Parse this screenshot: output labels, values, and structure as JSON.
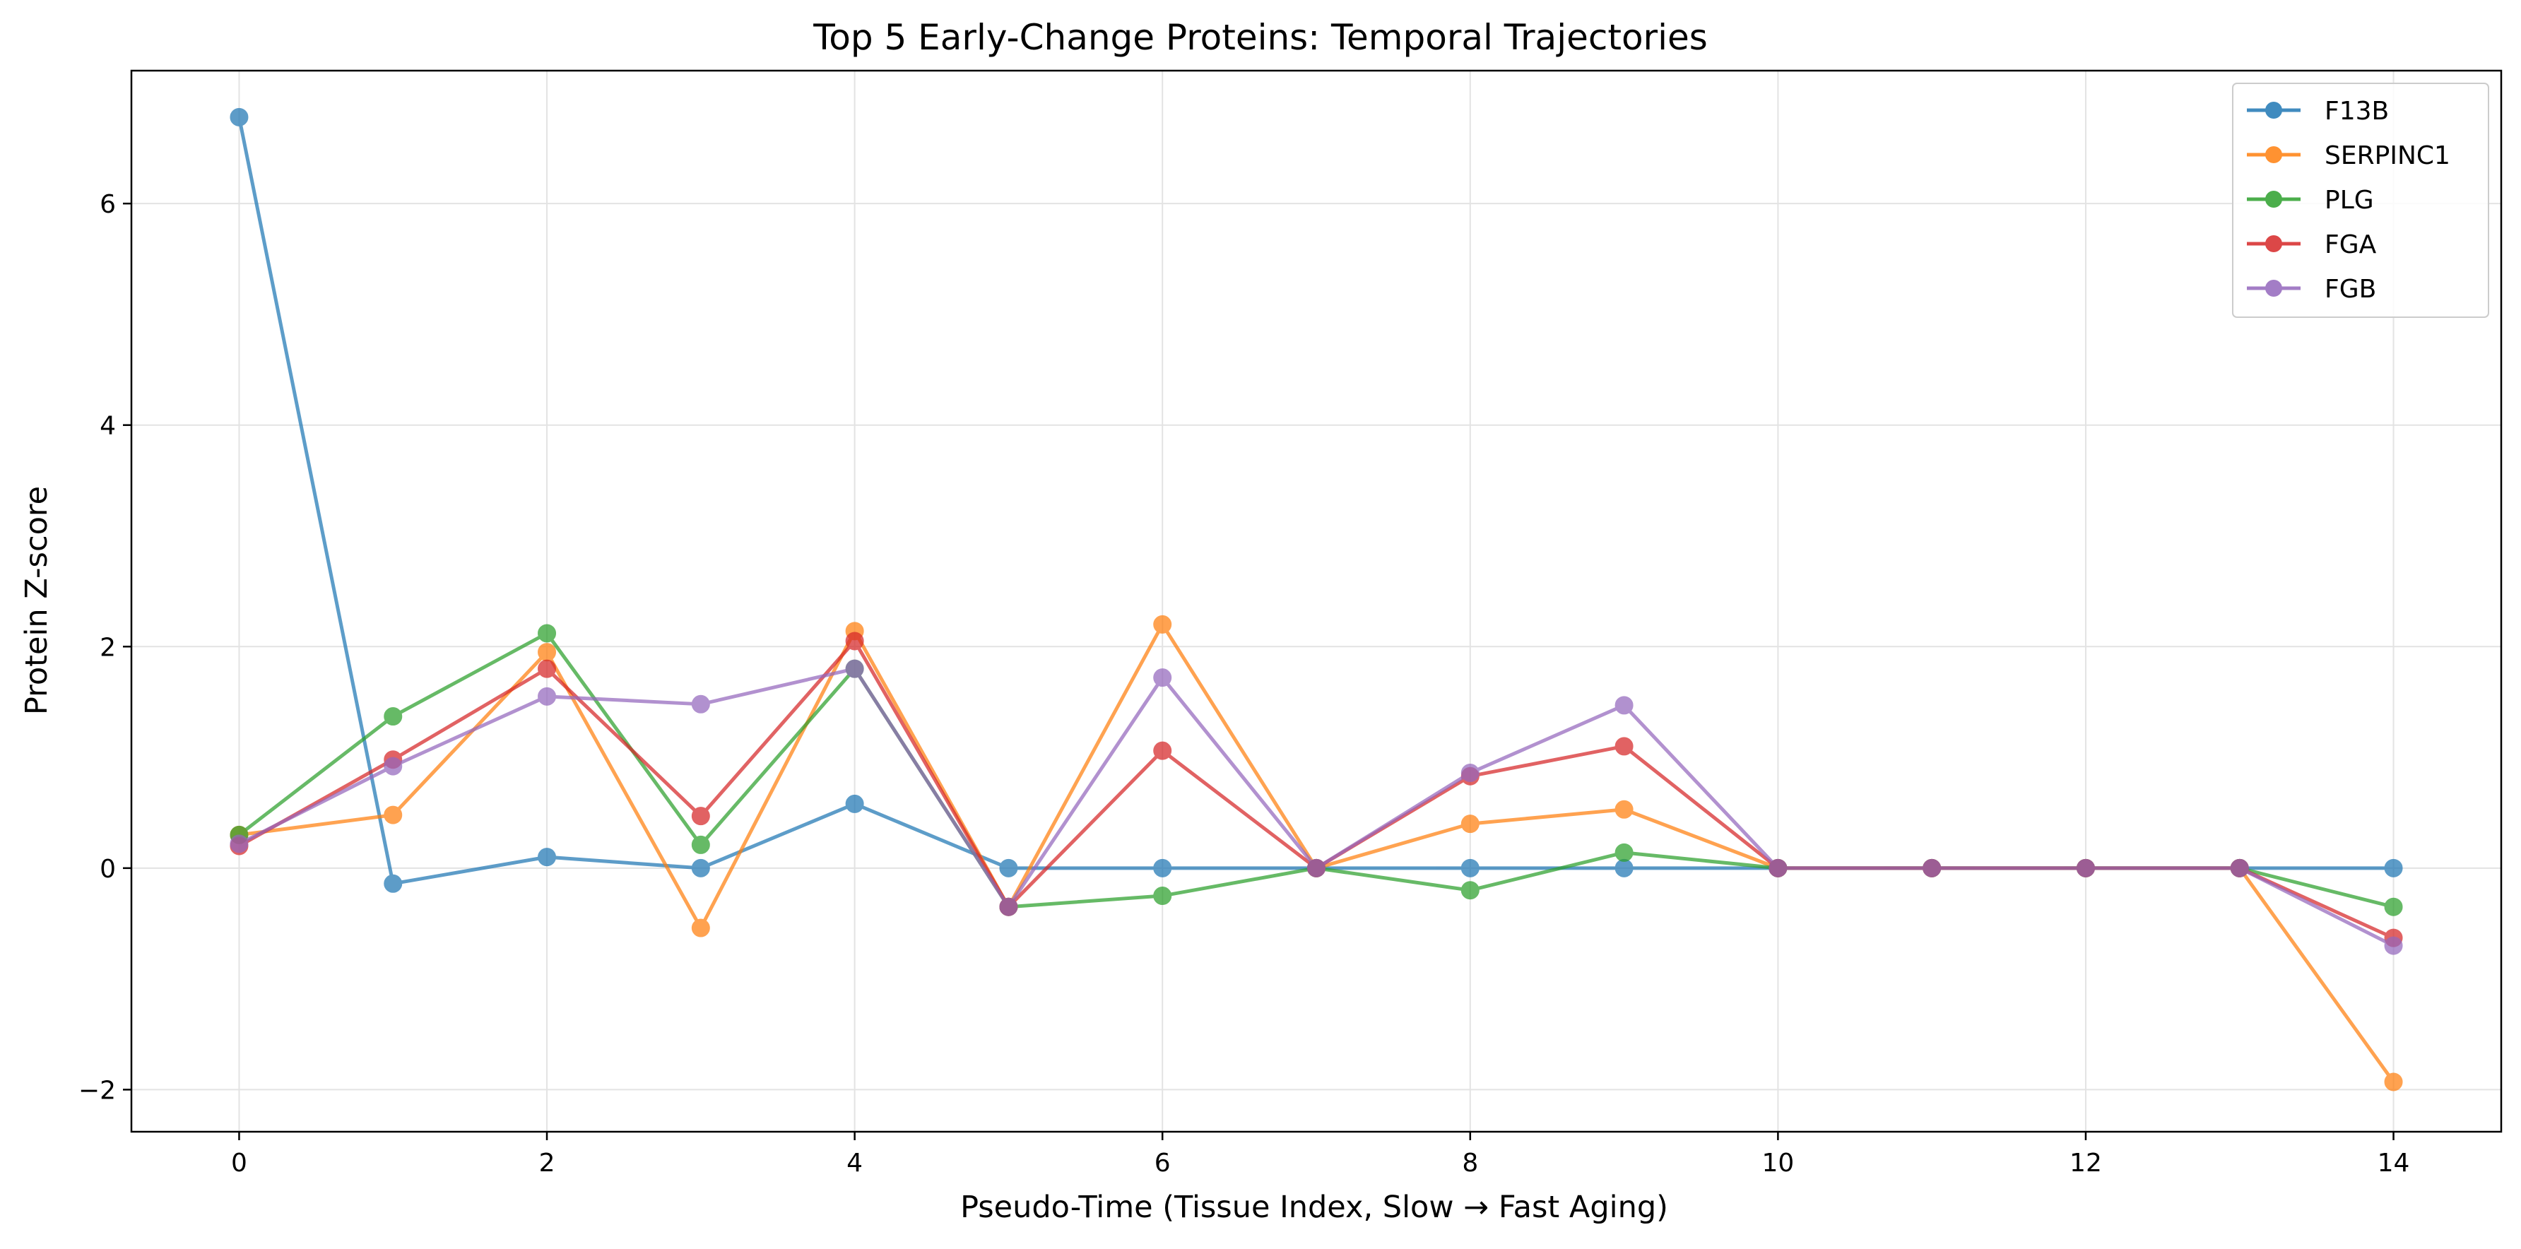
{
  "chart_data": {
    "type": "line",
    "title": "Top 5 Early-Change Proteins: Temporal Trajectories",
    "xlabel": "Pseudo-Time (Tissue Index, Slow → Fast Aging)",
    "ylabel": "Protein Z-score",
    "xlim": [
      -0.7,
      14.7
    ],
    "ylim": [
      -2.38,
      7.2
    ],
    "xticks": [
      0,
      2,
      4,
      6,
      8,
      10,
      12,
      14
    ],
    "yticks": [
      -2,
      0,
      2,
      4,
      6
    ],
    "ytick_labels": [
      "−2",
      "0",
      "2",
      "4",
      "6"
    ],
    "grid": true,
    "legend_position": "top-right",
    "x": [
      0,
      1,
      2,
      3,
      4,
      5,
      6,
      7,
      8,
      9,
      10,
      11,
      12,
      13,
      14
    ],
    "series": [
      {
        "name": "F13B",
        "color": "#1f77b4",
        "values": [
          6.78,
          -0.14,
          0.1,
          0.0,
          0.58,
          0.0,
          0.0,
          0.0,
          0.0,
          0.0,
          0.0,
          0.0,
          0.0,
          0.0,
          0.0
        ]
      },
      {
        "name": "SERPINC1",
        "color": "#ff7f0e",
        "values": [
          0.3,
          0.48,
          1.95,
          -0.54,
          2.14,
          -0.35,
          2.2,
          0.0,
          0.4,
          0.53,
          0.0,
          0.0,
          0.0,
          0.0,
          -1.93
        ]
      },
      {
        "name": "PLG",
        "color": "#2ca02c",
        "values": [
          0.3,
          1.37,
          2.12,
          0.21,
          1.8,
          -0.35,
          -0.25,
          0.0,
          -0.2,
          0.14,
          0.0,
          0.0,
          0.0,
          0.0,
          -0.35
        ]
      },
      {
        "name": "FGA",
        "color": "#d62728",
        "values": [
          0.2,
          0.98,
          1.8,
          0.47,
          2.05,
          -0.35,
          1.06,
          0.0,
          0.83,
          1.1,
          0.0,
          0.0,
          0.0,
          0.0,
          -0.63
        ]
      },
      {
        "name": "FGB",
        "color": "#9467bd",
        "values": [
          0.22,
          0.92,
          1.55,
          1.48,
          1.8,
          -0.35,
          1.72,
          0.0,
          0.86,
          1.47,
          0.0,
          0.0,
          0.0,
          0.0,
          -0.7
        ]
      }
    ]
  }
}
